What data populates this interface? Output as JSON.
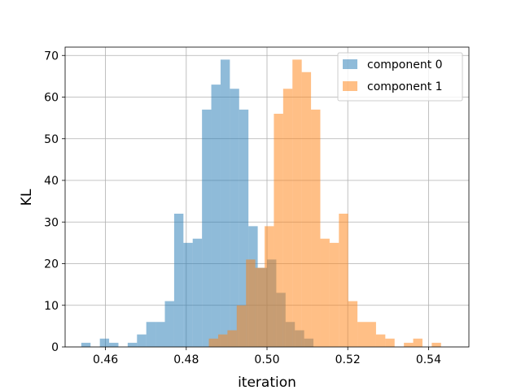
{
  "chart_data": {
    "type": "bar",
    "title": "",
    "xlabel": "iteration",
    "ylabel": "KL",
    "xlim": [
      0.45,
      0.55
    ],
    "ylim": [
      0,
      72
    ],
    "grid": true,
    "legend_position": "top-right",
    "x_ticks": [
      0.46,
      0.48,
      0.5,
      0.52,
      0.54
    ],
    "x_tick_labels": [
      "0.46",
      "0.48",
      "0.50",
      "0.52",
      "0.54"
    ],
    "y_ticks": [
      0,
      10,
      20,
      30,
      40,
      50,
      60,
      70
    ],
    "y_tick_labels": [
      "0",
      "10",
      "20",
      "30",
      "40",
      "50",
      "60",
      "70"
    ],
    "series": [
      {
        "name": "component 0",
        "color": "#1f77b4",
        "opacity": 0.5,
        "bin_start": 0.454,
        "bin_width": 0.0023,
        "counts": [
          1,
          0,
          2,
          1,
          0,
          1,
          3,
          6,
          6,
          11,
          32,
          25,
          26,
          57,
          63,
          69,
          62,
          57,
          29,
          19,
          21,
          13,
          6,
          4,
          2
        ]
      },
      {
        "name": "component 1",
        "color": "#ff7f0e",
        "opacity": 0.5,
        "bin_start": 0.4856,
        "bin_width": 0.0023,
        "counts": [
          2,
          3,
          4,
          10,
          21,
          19,
          29,
          56,
          62,
          69,
          66,
          57,
          26,
          25,
          32,
          11,
          6,
          6,
          3,
          2,
          0,
          1,
          2,
          0,
          1
        ]
      }
    ]
  }
}
